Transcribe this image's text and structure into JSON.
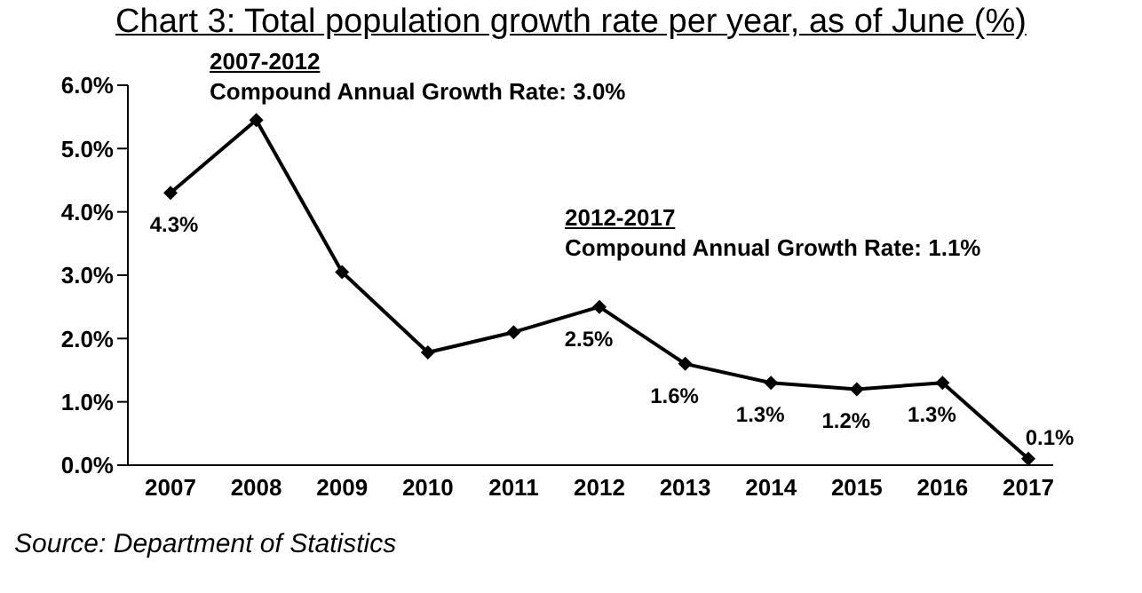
{
  "chart_data": {
    "type": "line",
    "title": "Chart 3: Total population growth rate per year, as of June (%)",
    "categories": [
      "2007",
      "2008",
      "2009",
      "2010",
      "2011",
      "2012",
      "2013",
      "2014",
      "2015",
      "2016",
      "2017"
    ],
    "series": [
      {
        "color": "#000000",
        "values": [
          4.3,
          5.45,
          3.05,
          1.78,
          2.1,
          2.5,
          1.6,
          1.3,
          1.2,
          1.3,
          0.1
        ],
        "value_labels": [
          "4.3%",
          null,
          null,
          null,
          null,
          "2.5%",
          "1.6%",
          "1.3%",
          "1.2%",
          "1.3%",
          "0.1%"
        ]
      }
    ],
    "ylim": [
      0,
      6
    ],
    "yticks": [
      {
        "value": 0,
        "label": "0.0%"
      },
      {
        "value": 1,
        "label": "1.0%"
      },
      {
        "value": 2,
        "label": "2.0%"
      },
      {
        "value": 3,
        "label": "3.0%"
      },
      {
        "value": 4,
        "label": "4.0%"
      },
      {
        "value": 5,
        "label": "5.0%"
      },
      {
        "value": 6,
        "label": "6.0%"
      }
    ],
    "grid": false,
    "legend": false,
    "marker": "diamond",
    "line_style": "solid",
    "annotations": [
      "2007-2012",
      "Compound Annual Growth Rate: 3.0%",
      "2012-2017",
      "Compound Annual Growth Rate: 1.1%",
      "Source: Department of Statistics"
    ]
  }
}
